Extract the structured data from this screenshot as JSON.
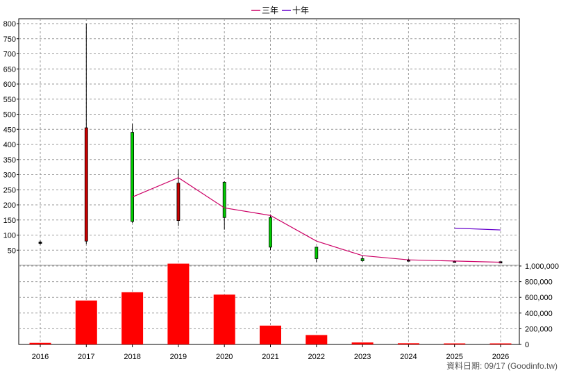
{
  "chart_data": {
    "type": "candlestick_with_volume",
    "years": [
      "2016",
      "2017",
      "2018",
      "2019",
      "2020",
      "2021",
      "2022",
      "2023",
      "2024",
      "2025",
      "2026"
    ],
    "price_axis": {
      "ylim": [
        0,
        800
      ],
      "ticks": [
        50,
        100,
        150,
        200,
        250,
        300,
        350,
        400,
        450,
        500,
        550,
        600,
        650,
        700,
        750,
        800
      ]
    },
    "volume_axis": {
      "ylim": [
        0,
        1000000
      ],
      "ticks": [
        "0",
        "200,000",
        "400,000",
        "600,000",
        "800,000",
        "1,000,000"
      ],
      "tick_values": [
        0,
        200000,
        400000,
        600000,
        800000,
        1000000
      ]
    },
    "candles": [
      {
        "year": "2016",
        "open": 75,
        "close": 77,
        "high": 82,
        "low": 68,
        "color": "#000000"
      },
      {
        "year": "2017",
        "open": 80,
        "close": 455,
        "high": 800,
        "low": 70,
        "color": "#cc0000"
      },
      {
        "year": "2018",
        "open": 440,
        "close": 145,
        "high": 468,
        "low": 140,
        "color": "#00cc00"
      },
      {
        "year": "2019",
        "open": 148,
        "close": 272,
        "high": 318,
        "low": 130,
        "color": "#cc0000"
      },
      {
        "year": "2020",
        "open": 275,
        "close": 158,
        "high": 278,
        "low": 118,
        "color": "#00cc00"
      },
      {
        "year": "2021",
        "open": 158,
        "close": 60,
        "high": 168,
        "low": 50,
        "color": "#00cc00"
      },
      {
        "year": "2022",
        "open": 60,
        "close": 22,
        "high": 62,
        "low": 10,
        "color": "#00cc00"
      },
      {
        "year": "2023",
        "open": 22,
        "close": 15,
        "high": 33,
        "low": 12,
        "color": "#00cc00"
      },
      {
        "year": "2024",
        "open": 18,
        "close": 18,
        "high": 22,
        "low": 14,
        "color": "#000000"
      },
      {
        "year": "2025",
        "open": 14,
        "close": 14,
        "high": 16,
        "low": 12,
        "color": "#000000"
      },
      {
        "year": "2026",
        "open": 10,
        "close": 12,
        "high": 12,
        "low": 9,
        "color": "#000000"
      }
    ],
    "volumes": [
      {
        "year": "2016",
        "value": 20000
      },
      {
        "year": "2017",
        "value": 560000
      },
      {
        "year": "2018",
        "value": 665000
      },
      {
        "year": "2019",
        "value": 1030000
      },
      {
        "year": "2020",
        "value": 635000
      },
      {
        "year": "2021",
        "value": 240000
      },
      {
        "year": "2022",
        "value": 120000
      },
      {
        "year": "2023",
        "value": 25000
      },
      {
        "year": "2024",
        "value": 15000
      },
      {
        "year": "2025",
        "value": 8000
      },
      {
        "year": "2026",
        "value": 5000
      }
    ],
    "series": [
      {
        "name": "三年",
        "color": "#cc0066",
        "points": [
          [
            "2018",
            226
          ],
          [
            "2019",
            290
          ],
          [
            "2020",
            190
          ],
          [
            "2021",
            165
          ],
          [
            "2022",
            80
          ],
          [
            "2023",
            32
          ],
          [
            "2024",
            18
          ],
          [
            "2025",
            14
          ],
          [
            "2026",
            10
          ]
        ]
      },
      {
        "name": "十年",
        "color": "#6600cc",
        "points": [
          [
            "2025",
            123
          ],
          [
            "2026",
            117
          ]
        ]
      }
    ],
    "grid": true,
    "legend": "top-center",
    "credit": "資料日期: 09/17  (Goodinfo.tw)"
  }
}
